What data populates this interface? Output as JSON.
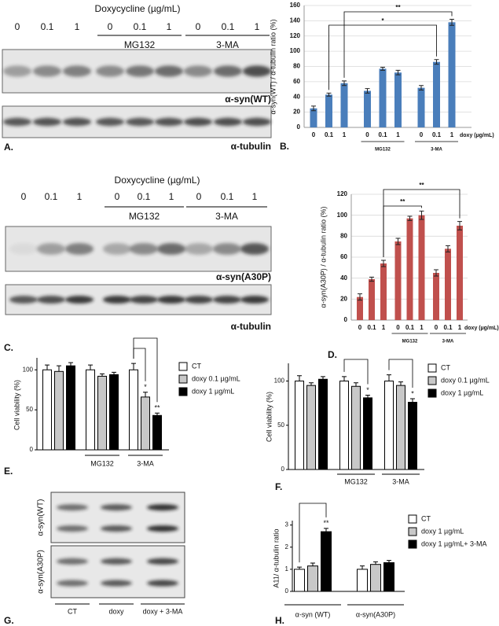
{
  "blots": [
    {
      "panel": "A.",
      "header": "Doxycycline (µg/mL)",
      "lanes": [
        "0",
        "0.1",
        "1",
        "0",
        "0.1",
        "1",
        "0",
        "0.1",
        "1"
      ],
      "groups": [
        "MG132",
        "3-MA"
      ],
      "bands": [
        "α-syn(WT)",
        "α-tubulin"
      ]
    },
    {
      "panel": "C.",
      "header": "Doxycycline (µg/mL)",
      "lanes": [
        "0",
        "0.1",
        "1",
        "0",
        "0.1",
        "1",
        "0",
        "0.1",
        "1"
      ],
      "groups": [
        "MG132",
        "3-MA"
      ],
      "bands": [
        "α-syn(A30P)",
        "α-tubulin"
      ]
    },
    {
      "panel": "G.",
      "rows": [
        "α-syn(WT)",
        "α-syn(A30P)"
      ],
      "lanes": [
        "CT",
        "doxy",
        "doxy + 3-MA"
      ]
    }
  ],
  "chart_data": [
    {
      "type": "bar",
      "panel": "B.",
      "y_label": "α-syn(WT) / α-tubulin ratio (%)",
      "x_label": "doxy (µg/mL)",
      "categories": [
        "0",
        "0.1",
        "1",
        "0",
        "0.1",
        "1",
        "0",
        "0.1",
        "1"
      ],
      "groups": [
        "MG132",
        "3-MA"
      ],
      "values": [
        25,
        43,
        58,
        48,
        77,
        72,
        52,
        86,
        138
      ],
      "errors": [
        3,
        2,
        3,
        3,
        2,
        3,
        3,
        3,
        4
      ],
      "color": "#4a7ebb",
      "ylim": [
        0,
        160
      ],
      "yticks": [
        0,
        20,
        40,
        60,
        80,
        100,
        120,
        140,
        160
      ],
      "grid": true,
      "annotations": [
        "*",
        "**"
      ]
    },
    {
      "type": "bar",
      "panel": "D.",
      "y_label": "α-syn(A30P) / α-tubulin ratio (%)",
      "x_label": "doxy (µg/mL)",
      "categories": [
        "0",
        "0.1",
        "1",
        "0",
        "0.1",
        "1",
        "0",
        "0.1",
        "1"
      ],
      "groups": [
        "MG132",
        "3-MA"
      ],
      "values": [
        22,
        39,
        54,
        75,
        97,
        100,
        45,
        68,
        90
      ],
      "errors": [
        3,
        2,
        3,
        3,
        2,
        4,
        3,
        3,
        4
      ],
      "color": "#c0504d",
      "ylim": [
        0,
        120
      ],
      "yticks": [
        0,
        20,
        40,
        60,
        80,
        100,
        120
      ],
      "grid": true,
      "annotations": [
        "**",
        "**"
      ]
    },
    {
      "type": "bar",
      "panel": "E.",
      "y_label": "Cell viability (%)",
      "categories": [
        null,
        "MG132",
        "3-MA"
      ],
      "series": [
        {
          "name": "CT",
          "color": "#ffffff",
          "values": [
            100,
            100,
            100
          ],
          "errors": [
            6,
            6,
            8
          ]
        },
        {
          "name": "doxy 0.1 µg/mL",
          "color": "#c8c8c8",
          "values": [
            98,
            92,
            66
          ],
          "errors": [
            7,
            3,
            6
          ]
        },
        {
          "name": "doxy 1 µg/mL",
          "color": "#000000",
          "values": [
            105,
            94,
            43
          ],
          "errors": [
            4,
            3,
            3
          ]
        }
      ],
      "ylim": [
        0,
        115
      ],
      "yticks": [
        0,
        50,
        100
      ],
      "grid": false,
      "annotations": [
        "*",
        "**"
      ]
    },
    {
      "type": "bar",
      "panel": "F.",
      "y_label": "Cell viability (%)",
      "categories": [
        null,
        "MG132",
        "3-MA"
      ],
      "series": [
        {
          "name": "CT",
          "color": "#ffffff",
          "values": [
            100,
            100,
            100
          ],
          "errors": [
            6,
            5,
            7
          ]
        },
        {
          "name": "doxy 0.1 µg/mL",
          "color": "#c8c8c8",
          "values": [
            95,
            94,
            95
          ],
          "errors": [
            3,
            4,
            4
          ]
        },
        {
          "name": "doxy 1 µg/mL",
          "color": "#000000",
          "values": [
            102,
            81,
            76
          ],
          "errors": [
            3,
            3,
            4
          ]
        }
      ],
      "ylim": [
        0,
        120
      ],
      "yticks": [
        0,
        50,
        100
      ],
      "grid": false,
      "annotations": [
        "*",
        "*"
      ]
    },
    {
      "type": "bar",
      "panel": "H.",
      "y_label": "A11/ α-tubulin ratio",
      "categories": [
        "α-syn (WT)",
        "α-syn(A30P)"
      ],
      "series": [
        {
          "name": "CT",
          "color": "#ffffff",
          "values": [
            1,
            1
          ],
          "errors": [
            0.1,
            0.15
          ]
        },
        {
          "name": "doxy 1 µg/mL",
          "color": "#c8c8c8",
          "values": [
            1.15,
            1.22
          ],
          "errors": [
            0.13,
            0.12
          ]
        },
        {
          "name": "doxy 1 µg/mL+ 3-MA",
          "color": "#000000",
          "values": [
            2.7,
            1.3
          ],
          "errors": [
            0.15,
            0.1
          ]
        }
      ],
      "ylim": [
        0,
        3.2
      ],
      "yticks": [
        0,
        1,
        2,
        3
      ],
      "grid": false,
      "annotations": [
        "**"
      ]
    }
  ]
}
